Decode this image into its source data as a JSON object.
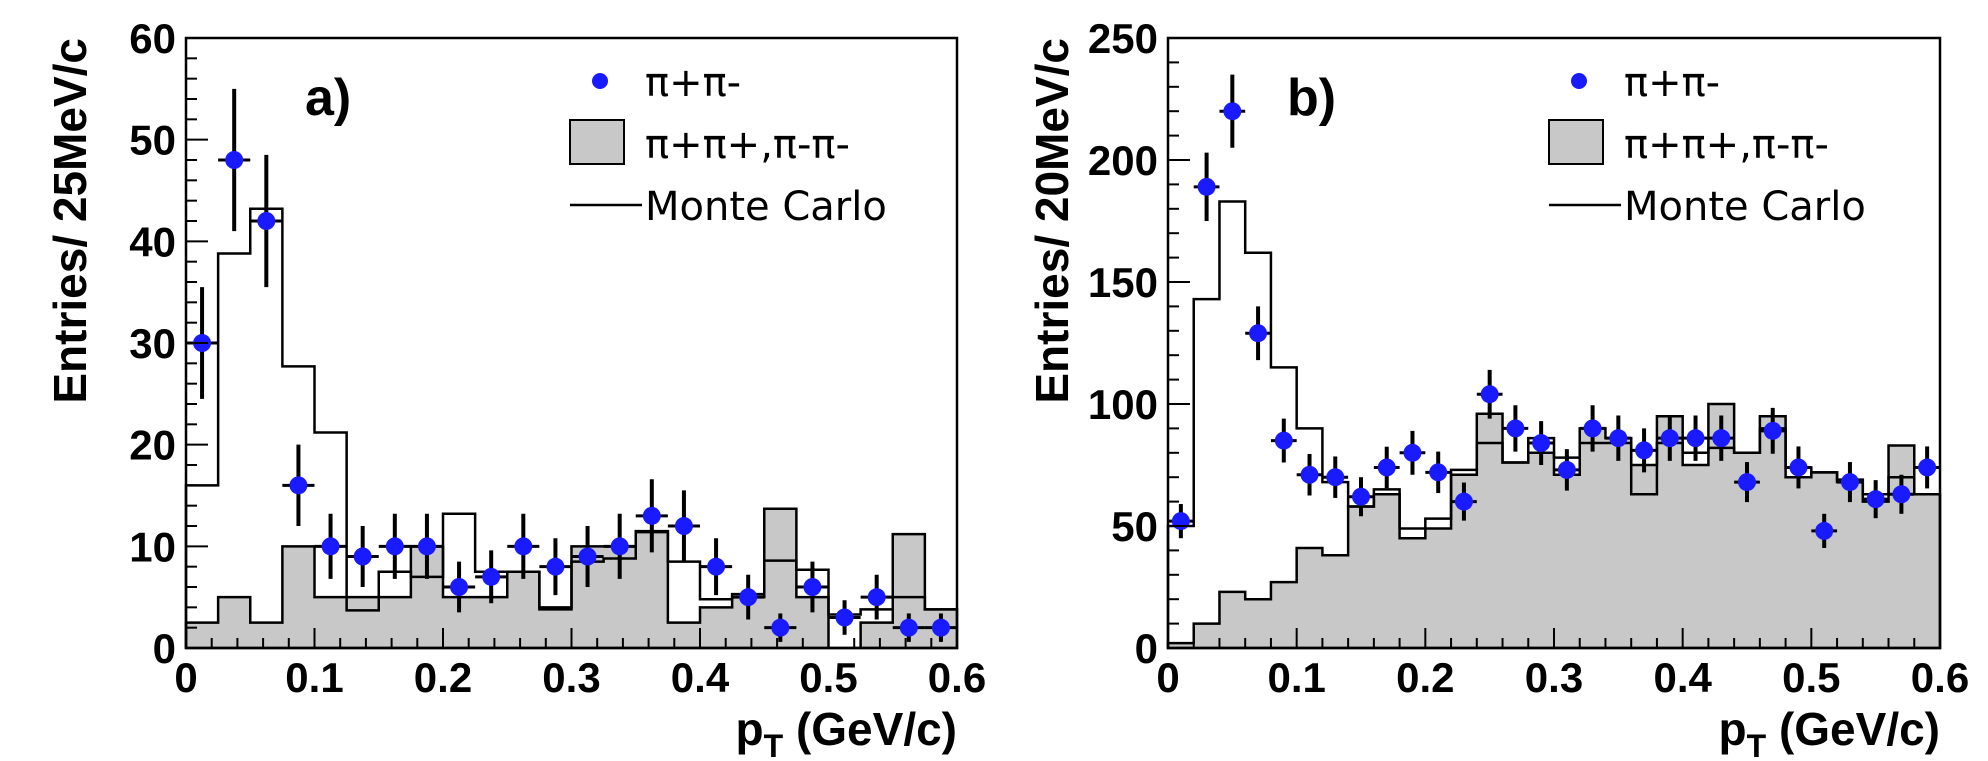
{
  "chart_data": [
    {
      "type": "histogram",
      "panel_label": "a)",
      "xlabel": "p",
      "xlabel_sub": "T",
      "xlabel_unit": "(GeV/c)",
      "ylabel": "Entries/ 25MeV/c",
      "xlim": [
        0,
        0.6
      ],
      "ylim": [
        0,
        60
      ],
      "x_ticks": [
        0,
        0.1,
        0.2,
        0.3,
        0.4,
        0.5,
        0.6
      ],
      "x_tick_labels": [
        "0",
        "0.1",
        "0.2",
        "0.3",
        "0.4",
        "0.5",
        "0.6"
      ],
      "y_ticks": [
        0,
        10,
        20,
        30,
        40,
        50,
        60
      ],
      "y_tick_labels": [
        "0",
        "10",
        "20",
        "30",
        "40",
        "50",
        "60"
      ],
      "bin_edges": [
        0,
        0.025,
        0.05,
        0.075,
        0.1,
        0.125,
        0.15,
        0.175,
        0.2,
        0.225,
        0.25,
        0.275,
        0.3,
        0.325,
        0.35,
        0.375,
        0.4,
        0.425,
        0.45,
        0.475,
        0.5,
        0.525,
        0.55,
        0.575,
        0.6
      ],
      "legend": {
        "placement": "top-right",
        "entries": [
          {
            "label": "π+π-",
            "style": "marker"
          },
          {
            "label": "π+π+,π-π-",
            "style": "filled-box"
          },
          {
            "label": "Monte Carlo",
            "style": "line"
          }
        ]
      },
      "series": [
        {
          "name": "π+π-",
          "style": "points-with-errors",
          "x": [
            0.0125,
            0.0375,
            0.0625,
            0.0875,
            0.1125,
            0.1375,
            0.1625,
            0.1875,
            0.2125,
            0.2375,
            0.2625,
            0.2875,
            0.3125,
            0.3375,
            0.3625,
            0.3875,
            0.4125,
            0.4375,
            0.4625,
            0.4875,
            0.5125,
            0.5375,
            0.5625,
            0.5875
          ],
          "values": [
            30,
            48,
            42,
            16,
            10,
            9,
            10,
            10,
            6,
            7,
            10,
            8,
            9,
            10,
            13,
            12,
            8,
            5,
            2,
            6,
            3,
            5,
            2,
            2
          ],
          "errors": [
            5.5,
            7,
            6.5,
            4,
            3.2,
            3,
            3.2,
            3.2,
            2.5,
            2.6,
            3.2,
            2.8,
            3,
            3.2,
            3.6,
            3.5,
            2.8,
            2.2,
            1.4,
            2.5,
            1.7,
            2.2,
            1.4,
            1.4
          ]
        },
        {
          "name": "π+π+,π-π-",
          "style": "filled-histogram",
          "values": [
            2.5,
            5,
            2.5,
            10,
            5,
            5,
            5,
            10,
            5,
            5,
            7.5,
            4,
            10,
            10,
            11.5,
            2.5,
            4,
            5,
            13.7,
            5,
            0,
            2.5,
            11.2,
            3.8
          ]
        },
        {
          "name": "Monte Carlo",
          "style": "step-line",
          "values": [
            16,
            38.8,
            43.2,
            27.7,
            21.2,
            3.7,
            7.5,
            7,
            13.2,
            7.5,
            7.5,
            3.8,
            8.5,
            8.8,
            11.4,
            8.5,
            4.8,
            5.3,
            8.6,
            7.7,
            3.3,
            3.8,
            5,
            3.8
          ]
        }
      ]
    },
    {
      "type": "histogram",
      "panel_label": "b)",
      "xlabel": "p",
      "xlabel_sub": "T",
      "xlabel_unit": "(GeV/c)",
      "ylabel": "Entries/ 20MeV/c",
      "xlim": [
        0,
        0.6
      ],
      "ylim": [
        0,
        250
      ],
      "x_ticks": [
        0,
        0.1,
        0.2,
        0.3,
        0.4,
        0.5,
        0.6
      ],
      "x_tick_labels": [
        "0",
        "0.1",
        "0.2",
        "0.3",
        "0.4",
        "0.5",
        "0.6"
      ],
      "y_ticks": [
        0,
        50,
        100,
        150,
        200,
        250
      ],
      "y_tick_labels": [
        "0",
        "50",
        "100",
        "150",
        "200",
        "250"
      ],
      "bin_edges": [
        0,
        0.02,
        0.04,
        0.06,
        0.08,
        0.1,
        0.12,
        0.14,
        0.16,
        0.18,
        0.2,
        0.22,
        0.24,
        0.26,
        0.28,
        0.3,
        0.32,
        0.34,
        0.36,
        0.38,
        0.4,
        0.42,
        0.44,
        0.46,
        0.48,
        0.5,
        0.52,
        0.54,
        0.56,
        0.58,
        0.6
      ],
      "legend": {
        "placement": "top-right",
        "entries": [
          {
            "label": "π+π-",
            "style": "marker"
          },
          {
            "label": "π+π+,π-π-",
            "style": "filled-box"
          },
          {
            "label": "Monte Carlo",
            "style": "line"
          }
        ]
      },
      "series": [
        {
          "name": "π+π-",
          "style": "points-with-errors",
          "x": [
            0.01,
            0.03,
            0.05,
            0.07,
            0.09,
            0.11,
            0.13,
            0.15,
            0.17,
            0.19,
            0.21,
            0.23,
            0.25,
            0.27,
            0.29,
            0.31,
            0.33,
            0.35,
            0.37,
            0.39,
            0.41,
            0.43,
            0.45,
            0.47,
            0.49,
            0.51,
            0.53,
            0.55,
            0.57,
            0.59
          ],
          "values": [
            52,
            189,
            220,
            129,
            85,
            71,
            70,
            62,
            74,
            80,
            72,
            60,
            104,
            90,
            84,
            73,
            90,
            86,
            81,
            86,
            86,
            86,
            68,
            89,
            74,
            48,
            68,
            61,
            63,
            74
          ],
          "errors": [
            7,
            14,
            15,
            11,
            9,
            8.5,
            8.5,
            8,
            8.5,
            9,
            8.5,
            7.8,
            10,
            9.5,
            9,
            8.5,
            9.5,
            9.3,
            9,
            9.3,
            9.3,
            9.3,
            8.2,
            9.4,
            8.6,
            7,
            8.2,
            7.8,
            8,
            8.6
          ]
        },
        {
          "name": "π+π+,π-π-",
          "style": "filled-histogram",
          "values": [
            2,
            10,
            23,
            20,
            27,
            41,
            38,
            58,
            63,
            45,
            49,
            71,
            96,
            76,
            80,
            71,
            90,
            86,
            75,
            95,
            75,
            100,
            80,
            95,
            70,
            72,
            68,
            60,
            83,
            63
          ]
        },
        {
          "name": "Monte Carlo",
          "style": "step-line",
          "values": [
            50,
            143,
            183,
            162,
            115,
            90,
            68,
            58,
            65,
            49,
            53,
            73,
            84,
            76,
            86,
            78,
            84,
            84,
            63,
            84,
            80,
            82,
            80,
            90,
            74,
            72,
            69,
            63,
            70,
            63
          ]
        }
      ]
    }
  ]
}
